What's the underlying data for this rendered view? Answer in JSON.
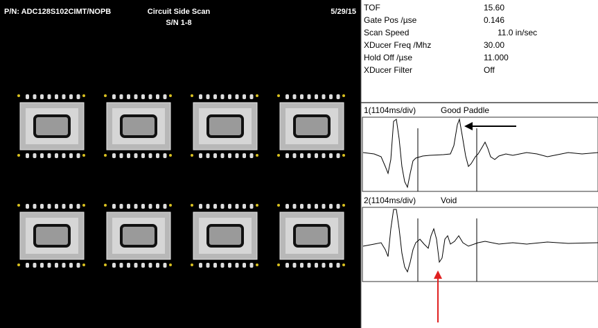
{
  "header": {
    "part_number": "P/N: ADC128S102CIMT/NOPB",
    "scan_title": "Circuit Side Scan",
    "serial": "S/N 1-8",
    "date": "5/29/15"
  },
  "parameters": [
    {
      "label": "TOF",
      "value": "15.60"
    },
    {
      "label": "Gate Pos /µse",
      "value": "0.146"
    },
    {
      "label": "Scan Speed",
      "value": "11.0 in/sec"
    },
    {
      "label": "XDucer Freq /Mhz",
      "value": "30.00"
    },
    {
      "label": "Hold Off /µse",
      "value": "11.000"
    },
    {
      "label": "XDucer Filter",
      "value": "Off"
    }
  ],
  "waveforms": [
    {
      "channel": "1(1104ms/div)",
      "label": "Good Paddle"
    },
    {
      "channel": "2(1104ms/div)",
      "label": "Void"
    }
  ]
}
